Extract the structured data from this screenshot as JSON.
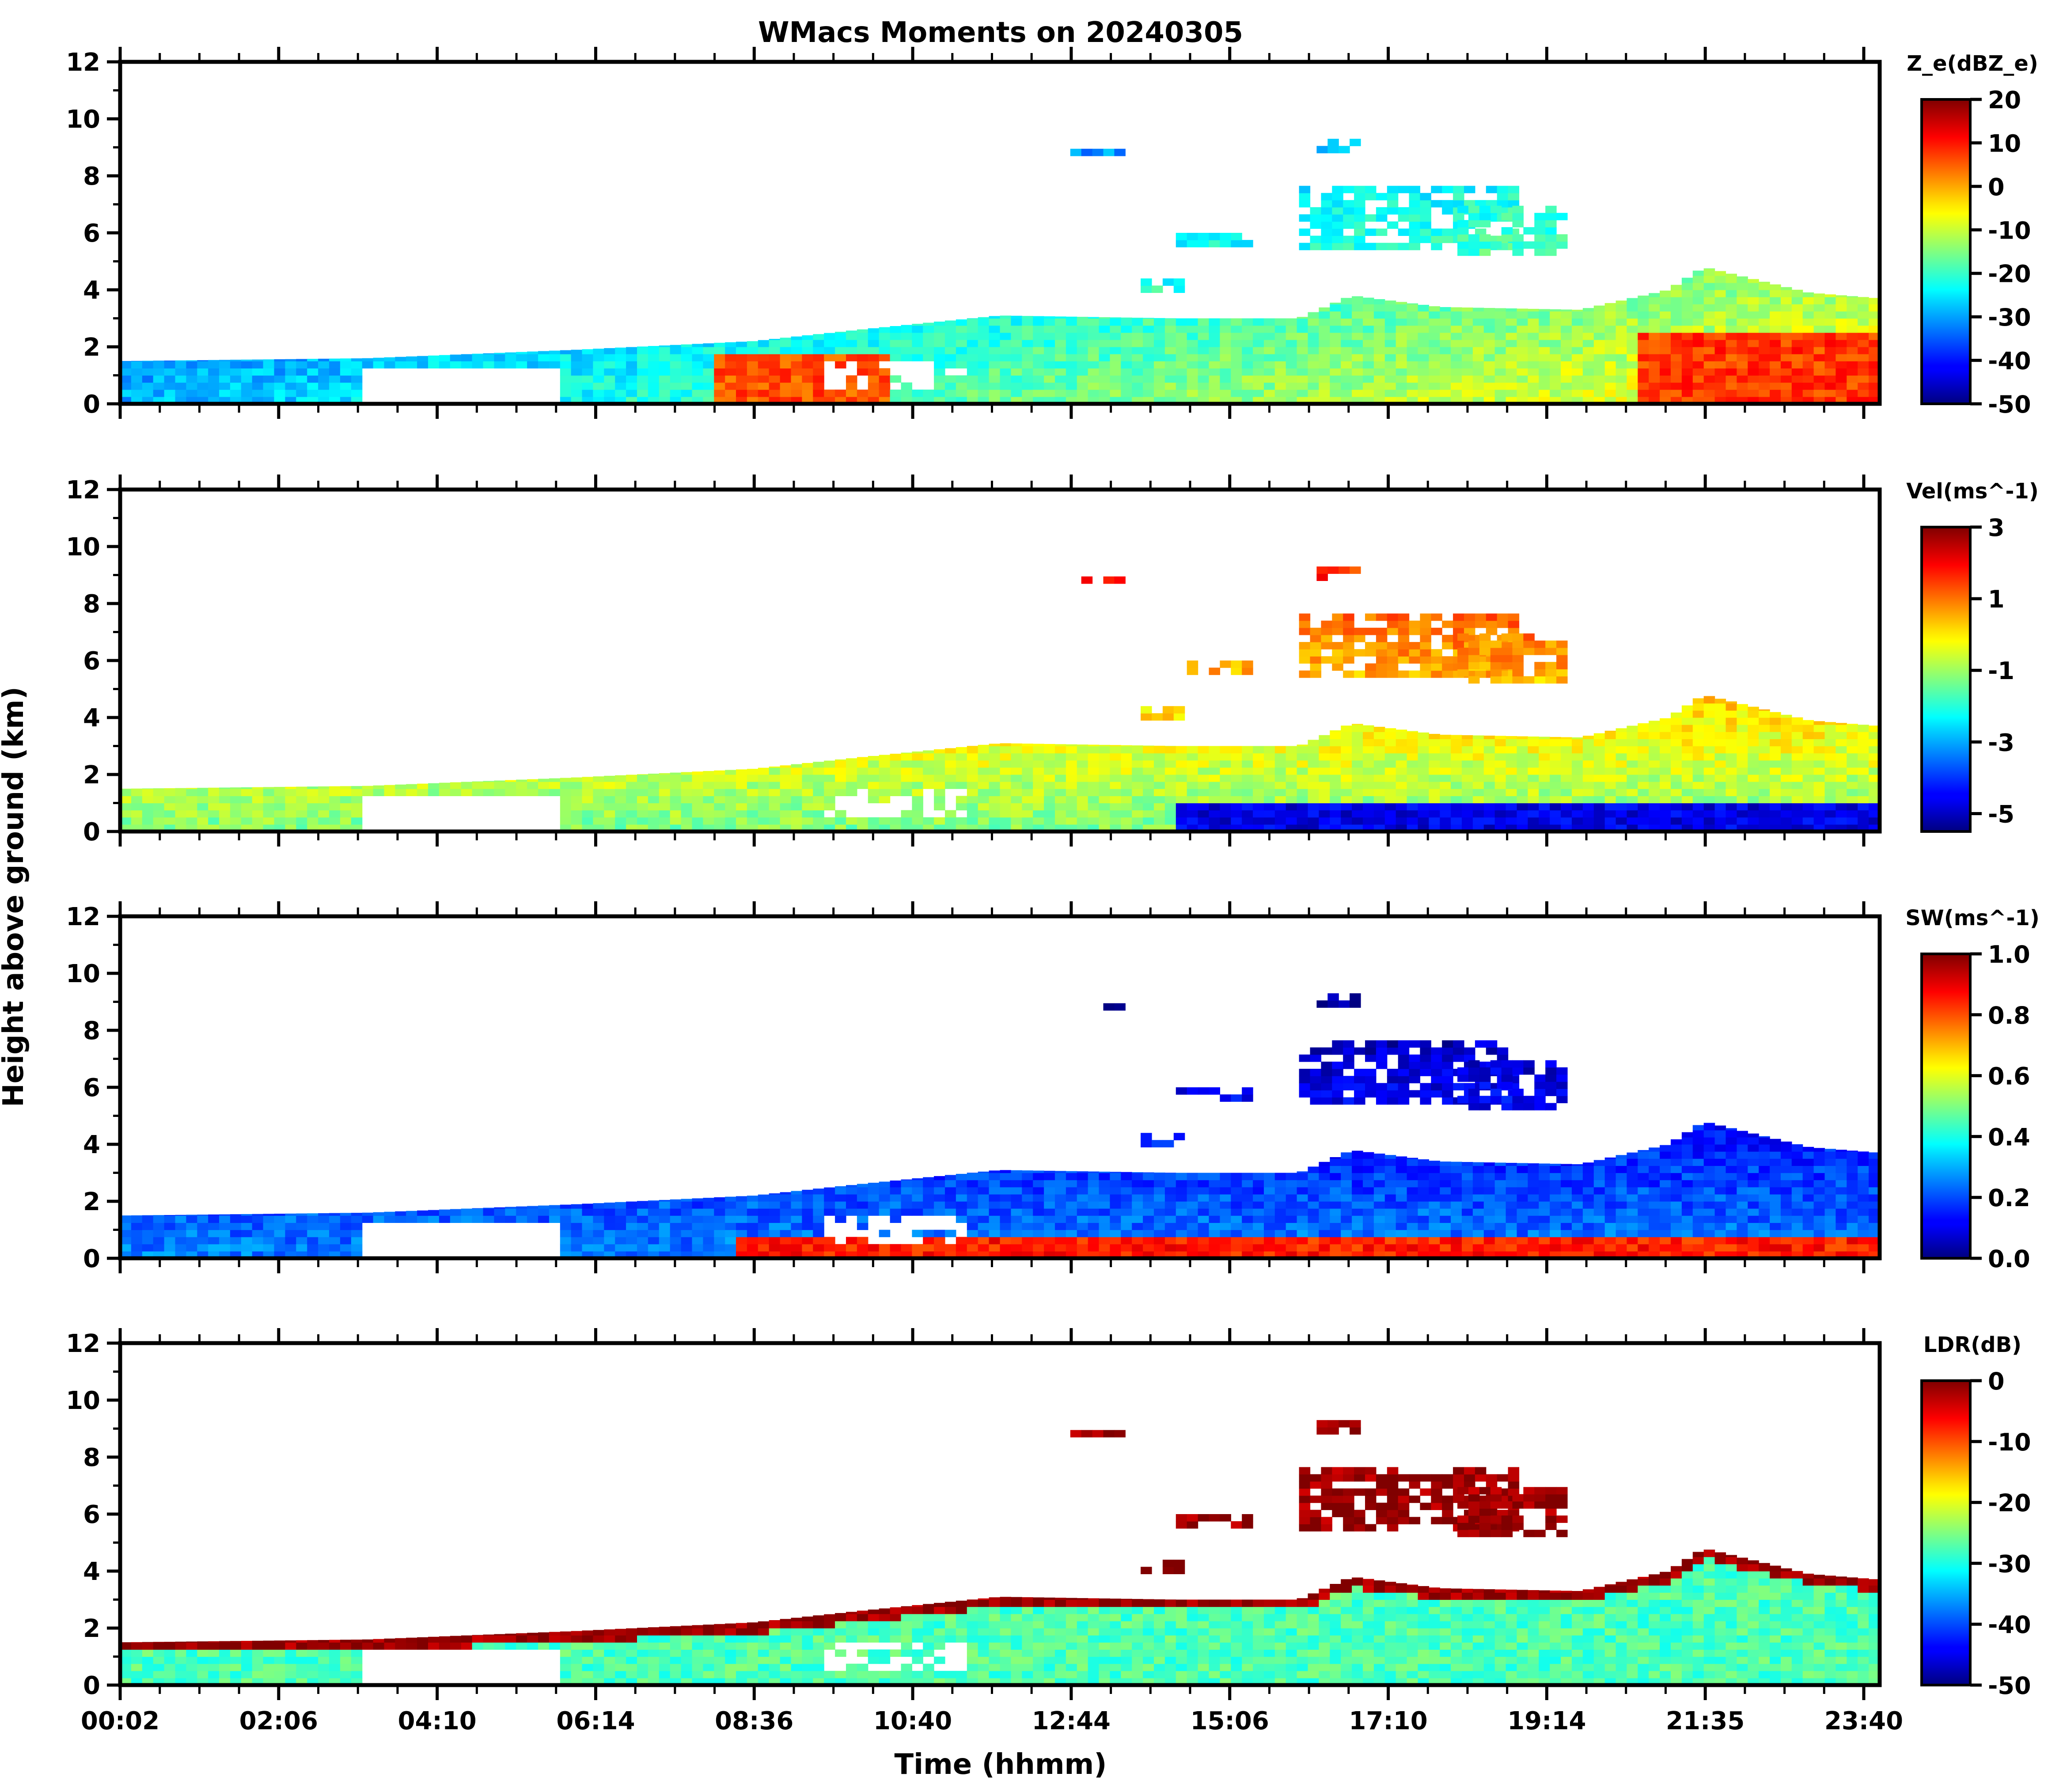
{
  "figure": {
    "title": "WMacs Moments on 20240305",
    "ylabel": "Height above ground (km)",
    "xlabel": "Time (hhmm)"
  },
  "chart_data": [
    {
      "type": "heatmap",
      "panel": "Ze",
      "colorbar_label": "Z_e(dBZ_e)",
      "colorbar_ticks": [
        "20",
        "10",
        "0",
        "-10",
        "-20",
        "-30",
        "-40",
        "-50"
      ],
      "colorbar_range": [
        -50,
        20
      ],
      "colormap": "jet",
      "ylim": [
        0,
        12
      ],
      "yticks": [
        "0",
        "2",
        "4",
        "6",
        "8",
        "10",
        "12"
      ],
      "xtick_labels": [
        "00:02",
        "02:06",
        "04:10",
        "06:14",
        "08:36",
        "10:40",
        "12:44",
        "15:06",
        "17:10",
        "19:14",
        "21:35",
        "23:40"
      ]
    },
    {
      "type": "heatmap",
      "panel": "Vel",
      "colorbar_label": "Vel(ms^-1)",
      "colorbar_ticks": [
        "3",
        "1",
        "-1",
        "-3",
        "-5"
      ],
      "colorbar_range": [
        -5.5,
        3
      ],
      "colormap": "jet",
      "ylim": [
        0,
        12
      ],
      "yticks": [
        "0",
        "2",
        "4",
        "6",
        "8",
        "10",
        "12"
      ],
      "xtick_labels": [
        "00:02",
        "02:06",
        "04:10",
        "06:14",
        "08:36",
        "10:40",
        "12:44",
        "15:06",
        "17:10",
        "19:14",
        "21:35",
        "23:40"
      ]
    },
    {
      "type": "heatmap",
      "panel": "SW",
      "colorbar_label": "SW(ms^-1)",
      "colorbar_ticks": [
        "1.0",
        "0.8",
        "0.6",
        "0.4",
        "0.2",
        "0.0"
      ],
      "colorbar_range": [
        0,
        1
      ],
      "colormap": "jet",
      "ylim": [
        0,
        12
      ],
      "yticks": [
        "0",
        "2",
        "4",
        "6",
        "8",
        "10",
        "12"
      ],
      "xtick_labels": [
        "00:02",
        "02:06",
        "04:10",
        "06:14",
        "08:36",
        "10:40",
        "12:44",
        "15:06",
        "17:10",
        "19:14",
        "21:35",
        "23:40"
      ]
    },
    {
      "type": "heatmap",
      "panel": "LDR",
      "colorbar_label": "LDR(dB)",
      "colorbar_ticks": [
        "0",
        "-10",
        "-20",
        "-30",
        "-40",
        "-50"
      ],
      "colorbar_range": [
        -50,
        0
      ],
      "colormap": "jet",
      "ylim": [
        0,
        12
      ],
      "yticks": [
        "0",
        "2",
        "4",
        "6",
        "8",
        "10",
        "12"
      ],
      "xtick_labels": [
        "00:02",
        "02:06",
        "04:10",
        "06:14",
        "08:36",
        "10:40",
        "12:44",
        "15:06",
        "17:10",
        "19:14",
        "21:35",
        "23:40"
      ]
    }
  ]
}
